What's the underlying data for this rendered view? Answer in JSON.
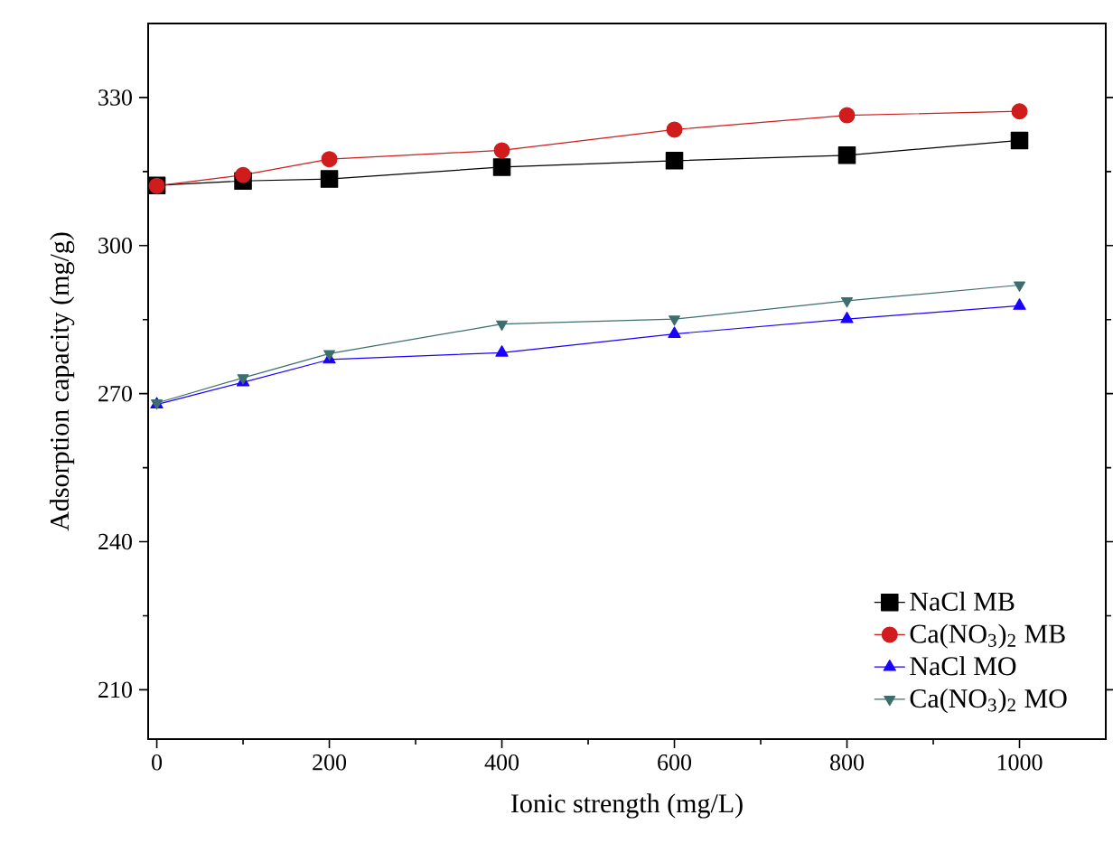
{
  "chart_data": {
    "type": "line",
    "xlabel": "Ionic strength (mg/L)",
    "ylabel": "Adsorption capacity (mg/g)",
    "x": [
      0,
      100,
      200,
      400,
      600,
      800,
      1000
    ],
    "xlim": [
      -10,
      1100
    ],
    "ylim": [
      200,
      345
    ],
    "xticks": [
      0,
      200,
      400,
      600,
      800,
      1000
    ],
    "yticks": [
      210,
      240,
      270,
      300,
      330
    ],
    "legend": "bottom right",
    "line_style": "solid",
    "series": [
      {
        "name": "NaCl MB",
        "color": "#000000",
        "marker": "square",
        "values": [
          312.2,
          313.1,
          313.5,
          315.9,
          317.2,
          318.3,
          321.3
        ]
      },
      {
        "name": "Ca(NO$_{3}$)$_{2}$ MB",
        "color": "#d01c1c",
        "marker": "circle",
        "values": [
          312.1,
          314.3,
          317.5,
          319.3,
          323.5,
          326.4,
          327.2
        ]
      },
      {
        "name": "NaCl MO",
        "color": "#1a00ff",
        "marker": "triangle",
        "values": [
          267.8,
          272.3,
          276.9,
          278.3,
          282.1,
          285.1,
          287.8
        ]
      },
      {
        "name": "Ca(NO$_{3}$)$_{2}$ MO",
        "color": "#3d6e6e",
        "marker": "triangle-down",
        "values": [
          268.1,
          273.2,
          278.1,
          284.1,
          285.1,
          288.8,
          292.0
        ]
      }
    ]
  }
}
